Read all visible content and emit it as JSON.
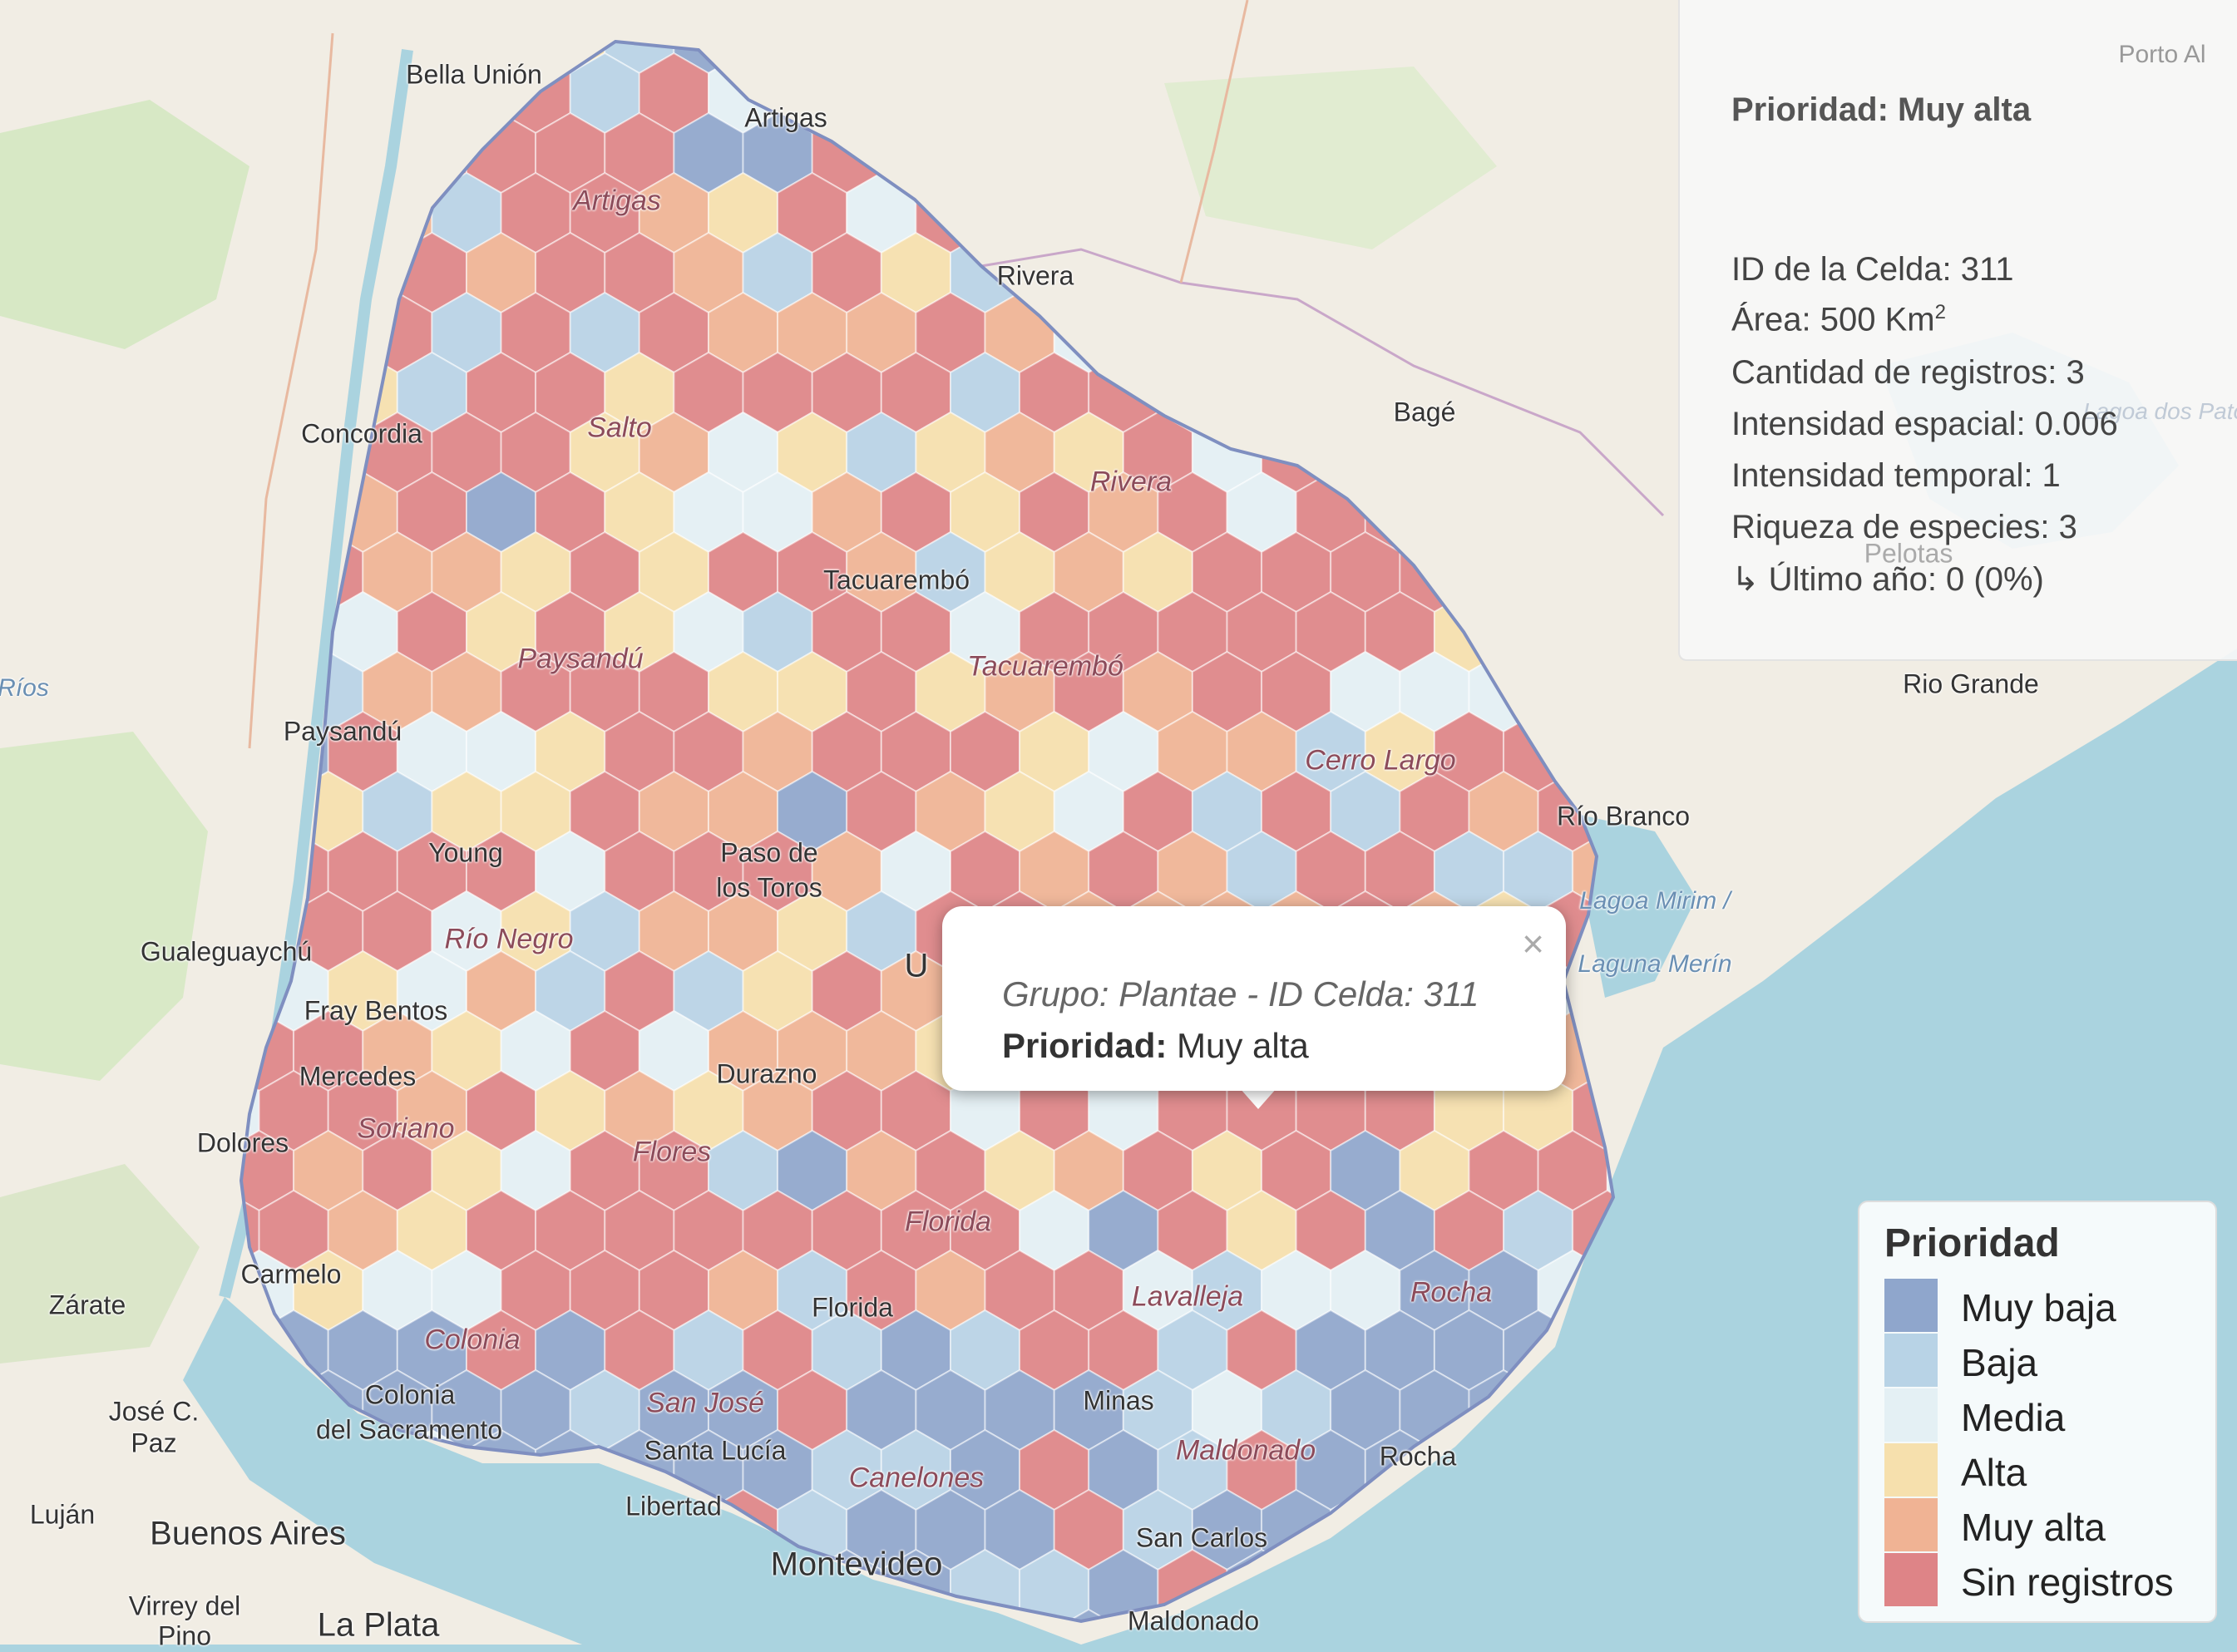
{
  "info_panel": {
    "title": "Prioridad: Muy alta",
    "cell_id": "ID de la Celda: 311",
    "area": "Área: 500 Km",
    "area_sup": "2",
    "records": "Cantidad de registros: 3",
    "spatial_intensity": "Intensidad espacial: 0.006",
    "temporal_intensity": "Intensidad temporal: 1",
    "richness": "Riqueza de especies: 3",
    "last_year": "↳ Último año: 0 (0%)"
  },
  "popup": {
    "group": "Grupo: Plantae - ID Celda: 311",
    "priority_label": "Prioridad:",
    "priority_value": "Muy alta",
    "close_symbol": "×"
  },
  "legend": {
    "title": "Prioridad",
    "items": [
      {
        "label": "Muy baja",
        "color": "#8fa6cc"
      },
      {
        "label": "Baja",
        "color": "#b8d3e6"
      },
      {
        "label": "Media",
        "color": "#e4f0f4"
      },
      {
        "label": "Alta",
        "color": "#f6e0ad"
      },
      {
        "label": "Muy alta",
        "color": "#f0b394"
      },
      {
        "label": "Sin registros",
        "color": "#de8487"
      }
    ]
  },
  "map_labels": {
    "bella_union": "Bella Unión",
    "artigas": "Artigas",
    "artigas_dept": "Artigas",
    "porto_alegre": "Porto Al",
    "rivera": "Rivera",
    "concordia": "Concordia",
    "salto": "Salto",
    "bage": "Bagé",
    "rivera_dept": "Rivera",
    "lagoa_patos": "Lagoa dos Patos",
    "pelotas": "Pelotas",
    "tacuarembo": "Tacuarembó",
    "rios": "Ríos",
    "paysandu_dept": "Paysandú",
    "tacuarembo_dept": "Tacuarembó",
    "rio_grande": "Rio Grande",
    "paysandu": "Paysandú",
    "cerro_largo": "Cerro Largo",
    "rio_branco": "Río Branco",
    "young": "Young",
    "paso_de": "Paso de",
    "los_toros": "los Toros",
    "lagoa_mirim": "Lagoa Mirim /",
    "laguna_merin": "Laguna Merín",
    "gualeguaychu": "Gualeguaychú",
    "rio_negro": "Río Negro",
    "fray_bentos": "Fray Bentos",
    "mercedes": "Mercedes",
    "durazno": "Durazno",
    "dolores": "Dolores",
    "soriano": "Soriano",
    "flores": "Flores",
    "florida_dept": "Florida",
    "carmelo": "Carmelo",
    "zarate": "Zárate",
    "florida": "Florida",
    "lavalleja": "Lavalleja",
    "rocha_dept": "Rocha",
    "colonia_dept": "Colonia",
    "colonia": "Colonia",
    "del_sacramento": "del Sacramento",
    "san_jose": "San José",
    "minas": "Minas",
    "jose_c": "José C.",
    "paz": "Paz",
    "santa_lucia": "Santa Lucía",
    "maldonado_dept": "Maldonado",
    "rocha": "Rocha",
    "canelones": "Canelones",
    "lujan": "Luján",
    "buenos_aires": "Buenos Aires",
    "libertad": "Libertad",
    "san_carlos": "San Carlos",
    "montevideo": "Montevideo",
    "virrey": "Virrey del",
    "pino": "Pino",
    "la_plata": "La Plata",
    "maldonado": "Maldonado",
    "u": "U"
  }
}
